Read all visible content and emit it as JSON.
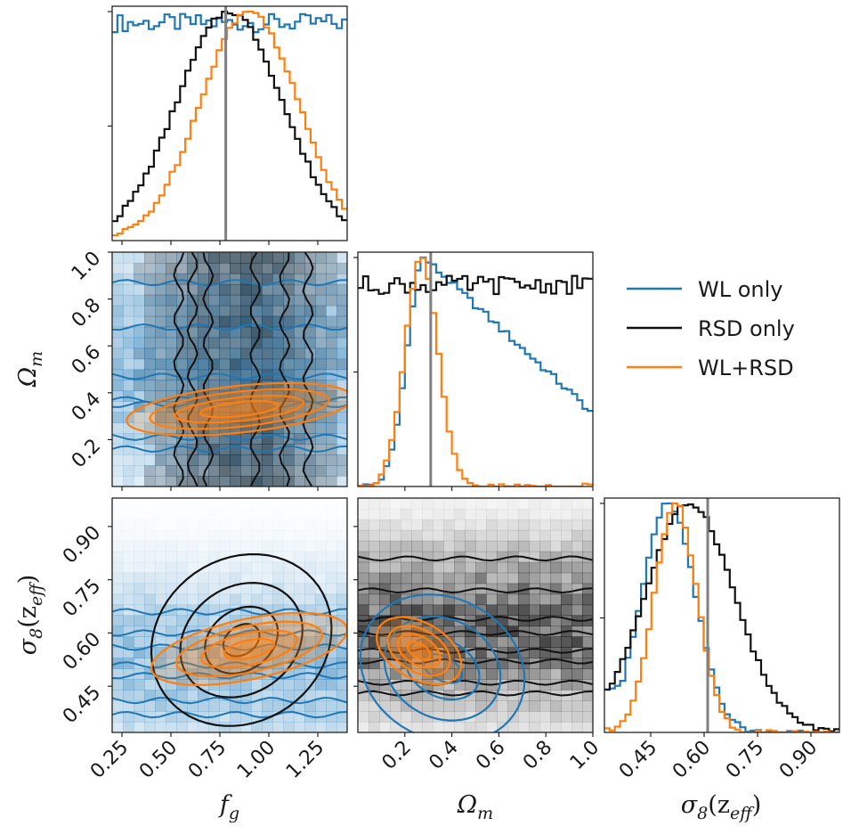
{
  "colors": {
    "wl": "#1f77b4",
    "rsd": "#111111",
    "joint": "#ff7f0e",
    "truth": "#808080",
    "wl_fill": "#1f77b4",
    "rsd_fill": "#000000",
    "joint_fill": "#ff7f0e"
  },
  "legend": [
    {
      "key": "wl",
      "label": "WL only"
    },
    {
      "key": "rsd",
      "label": "RSD only"
    },
    {
      "key": "joint",
      "label": "WL+RSD"
    }
  ],
  "axes": {
    "fg": {
      "label": "f",
      "sub": "g",
      "range": [
        0.2,
        1.4
      ],
      "ticks": [
        0.25,
        0.5,
        0.75,
        1.0,
        1.25
      ],
      "tick_labels": [
        "0.25",
        "0.50",
        "0.75",
        "1.00",
        "1.25"
      ],
      "truth": 0.78
    },
    "om": {
      "label": "Ω",
      "sub": "m",
      "range": [
        0.0,
        1.0
      ],
      "ticks": [
        0.2,
        0.4,
        0.6,
        0.8,
        1.0
      ],
      "tick_labels": [
        "0.2",
        "0.4",
        "0.6",
        "0.8",
        "1.0"
      ],
      "truth": 0.31
    },
    "s8": {
      "label": "σ",
      "sub": "8",
      "tail": "(z",
      "tail_sub": "eff",
      "tail_end": ")",
      "range": [
        0.32,
        0.98
      ],
      "ticks": [
        0.45,
        0.6,
        0.75,
        0.9
      ],
      "tick_labels": [
        "0.45",
        "0.60",
        "0.75",
        "0.90"
      ],
      "truth": 0.61
    }
  },
  "chart_data": {
    "type": "corner",
    "parameters": [
      "f_g",
      "Omega_m",
      "sigma_8(z_eff)"
    ],
    "series": [
      {
        "key": "wl",
        "name": "WL only",
        "hist": {
          "fg": {
            "shape": "flat",
            "level": 0.95
          },
          "om": {
            "shape": "skew",
            "peak": 0.28,
            "left_width": 0.07,
            "decay_to": 0.32
          },
          "s8": {
            "shape": "gauss",
            "mean": 0.5,
            "sigma": 0.075,
            "left_floor": 0.25
          }
        }
      },
      {
        "key": "rsd",
        "name": "RSD only",
        "hist": {
          "fg": {
            "shape": "gauss",
            "mean": 0.8,
            "sigma": 0.27
          },
          "om": {
            "shape": "flat",
            "level": 0.88
          },
          "s8": {
            "shape": "gauss",
            "mean": 0.56,
            "sigma": 0.125
          }
        }
      },
      {
        "key": "joint",
        "name": "WL+RSD",
        "hist": {
          "fg": {
            "shape": "gauss",
            "mean": 0.9,
            "sigma": 0.25
          },
          "om": {
            "shape": "gauss",
            "mean": 0.27,
            "sigma": 0.07
          },
          "s8": {
            "shape": "gauss",
            "mean": 0.52,
            "sigma": 0.06
          }
        }
      }
    ],
    "panels_2d": [
      {
        "x": "fg",
        "y": "om",
        "shading": "wl",
        "contours": [
          {
            "series": "wl",
            "kind": "hlines",
            "values": [
              0.16,
              0.21,
              0.35,
              0.37,
              0.47,
              0.68,
              0.87
            ],
            "wobble": 0.012
          },
          {
            "series": "rsd",
            "kind": "vlines",
            "values": [
              0.54,
              0.61,
              0.69,
              0.93,
              1.08,
              1.2
            ],
            "wobble": 0.025
          },
          {
            "series": "joint",
            "kind": "ellipses",
            "cx": 0.85,
            "cy": 0.33,
            "sx": [
              0.2,
              0.33,
              0.46,
              0.58
            ],
            "sy": [
              0.03,
              0.05,
              0.075,
              0.1
            ],
            "angle": 6
          }
        ]
      },
      {
        "x": "fg",
        "y": "s8",
        "shading": "wl",
        "contours": [
          {
            "series": "wl",
            "kind": "hlines",
            "values": [
              0.37,
              0.41,
              0.48,
              0.51,
              0.56,
              0.6,
              0.66
            ],
            "wobble": 0.008
          },
          {
            "series": "rsd",
            "kind": "ellipses",
            "cx": 0.86,
            "cy": 0.58,
            "sx": [
              0.1,
              0.2,
              0.33,
              0.48
            ],
            "sy": [
              0.04,
              0.085,
              0.15,
              0.23
            ],
            "angle": 35
          },
          {
            "series": "joint",
            "kind": "ellipses",
            "cx": 0.9,
            "cy": 0.555,
            "sx": [
              0.13,
              0.25,
              0.38,
              0.51
            ],
            "sy": [
              0.025,
              0.045,
              0.065,
              0.085
            ],
            "angle": 12
          }
        ]
      },
      {
        "x": "om",
        "y": "s8",
        "shading": "rsd",
        "contours": [
          {
            "series": "rsd",
            "kind": "hlines",
            "values": [
              0.43,
              0.46,
              0.52,
              0.55,
              0.6,
              0.64,
              0.72,
              0.81
            ],
            "wobble": 0.006
          },
          {
            "series": "wl",
            "kind": "ellipses",
            "cx": 0.36,
            "cy": 0.5,
            "sx": [
              0.05,
              0.12,
              0.21,
              0.3
            ],
            "sy": [
              0.06,
              0.11,
              0.17,
              0.24
            ],
            "angle": 62
          },
          {
            "series": "joint",
            "kind": "ellipses",
            "cx": 0.26,
            "cy": 0.55,
            "sx": [
              0.03,
              0.06,
              0.09,
              0.12
            ],
            "sy": [
              0.035,
              0.065,
              0.095,
              0.13
            ],
            "angle": 60
          }
        ]
      }
    ]
  }
}
